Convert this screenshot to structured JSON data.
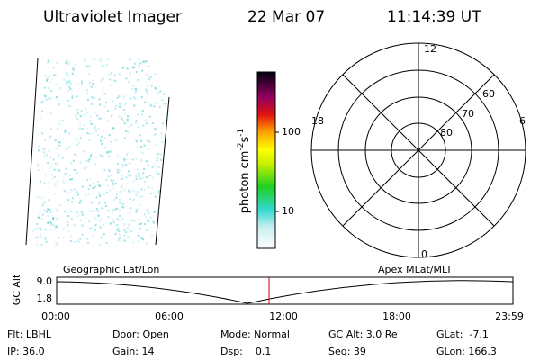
{
  "header": {
    "instrument": "Ultraviolet Imager",
    "date": "22 Mar 07",
    "time": "11:14:39 UT"
  },
  "colorbar": {
    "label": [
      "photon cm",
      "-2",
      "s",
      "-1"
    ],
    "ticks": [
      "100",
      "10"
    ]
  },
  "polar": {
    "mlt_labels": [
      "12",
      "6",
      "0",
      "18"
    ],
    "lat_labels": [
      "60",
      "70",
      "80"
    ]
  },
  "altitude_plot": {
    "left_title": "Geographic Lat/Lon",
    "right_title": "Apex MLat/MLT",
    "ylabel": "GC Alt",
    "yticks": [
      "9.0",
      "1.8"
    ],
    "xticks": [
      "00:00",
      "06:00",
      "12:00",
      "18:00",
      "23:59"
    ]
  },
  "footer": {
    "rows": [
      [
        "Flt: LBHL",
        "Door: Open",
        "Mode: Normal",
        "GC Alt: 3.0 Re",
        "GLat:  -7.1"
      ],
      [
        "IP: 36.0",
        "Gain: 14",
        "Dsp:    0.1",
        "Seq: 39",
        "GLon: 166.3"
      ]
    ]
  }
}
